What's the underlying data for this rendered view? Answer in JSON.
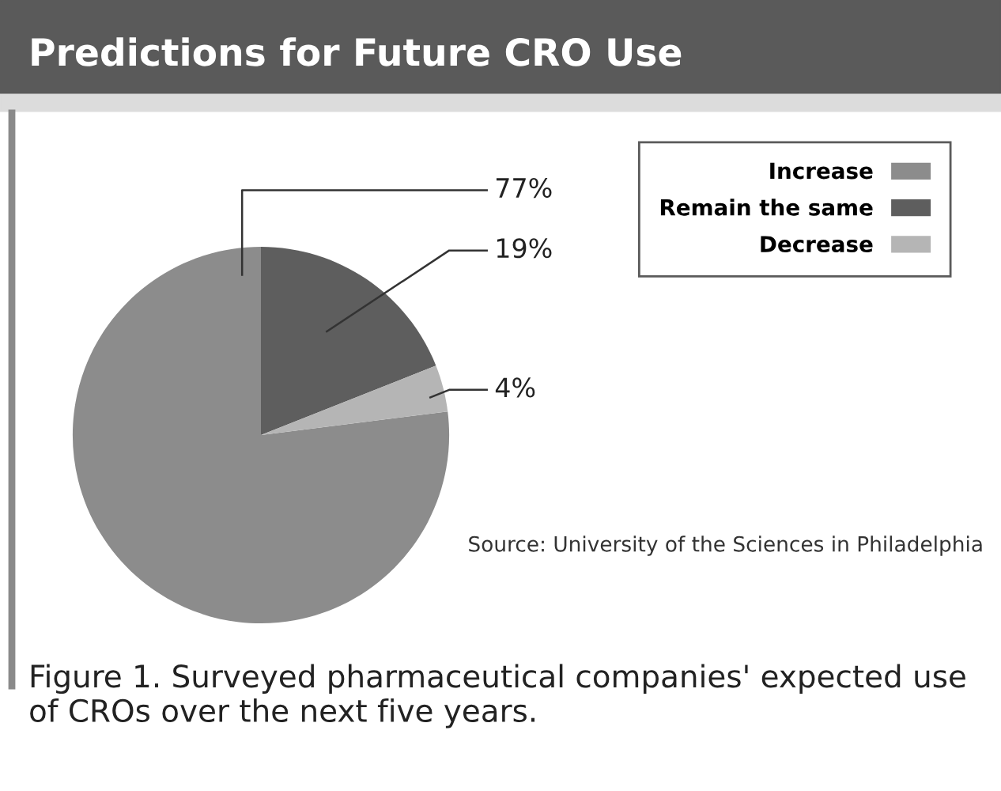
{
  "chart_data": {
    "type": "pie",
    "title": "Predictions for Future CRO Use",
    "categories": [
      "Increase",
      "Remain the same",
      "Decrease"
    ],
    "values": [
      77,
      19,
      4
    ],
    "colors": [
      "#8c8c8c",
      "#5e5e5e",
      "#b5b5b5"
    ],
    "value_labels": [
      "77%",
      "19%",
      "4%"
    ],
    "legend": "top right",
    "annotations": [
      "Source: University of the Sciences in Philadelphia",
      "Figure 1. Surveyed pharmaceutical companies' expected use of CROs over the next five years."
    ]
  }
}
